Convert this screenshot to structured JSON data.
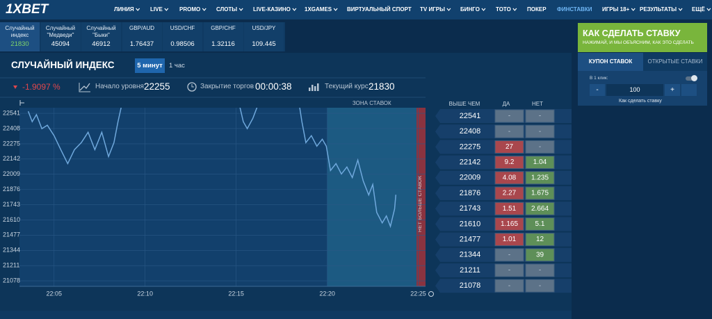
{
  "nav": {
    "logo": "1XBET",
    "items": [
      "ЛИНИЯ",
      "LIVE",
      "PROMO",
      "СЛОТЫ",
      "LIVE-КАЗИНО",
      "1XGAMES",
      "ВИРТУАЛЬНЫЙ СПОРТ",
      "TV ИГРЫ",
      "БИНГО",
      "ТОТО",
      "ПОКЕР",
      "ФИНСТАВКИ",
      "ИГРЫ 18+",
      "РЕЗУЛЬТАТЫ",
      "ЕЩЁ"
    ]
  },
  "tabs": [
    {
      "label": "Случайный индекс",
      "value": 21830
    },
    {
      "label": "Случайный \"Медведи\"",
      "value": 45094
    },
    {
      "label": "Случайный \"Быки\"",
      "value": 46912
    },
    {
      "label": "GBP/AUD",
      "value": 1.76437
    },
    {
      "label": "USD/CHF",
      "value": 0.98506
    },
    {
      "label": "GBP/CHF",
      "value": 1.32116
    },
    {
      "label": "USD/JPY",
      "value": 109.445
    }
  ],
  "panel": {
    "title": "СЛУЧАЙНЫЙ ИНДЕКС",
    "periods": [
      "5 минут",
      "1 час"
    ],
    "change": "-1.9097 %",
    "start_label": "Начало уровня",
    "start_value": 22255,
    "close_label": "Закрытие торгов",
    "close_value": "00:00:38",
    "rate_label": "Текущий курс",
    "rate_value": 21830
  },
  "chart_data": {
    "type": "line",
    "zone_label": "ЗОНА СТАВОК",
    "closed_label": "НЕТ БОЛЬШЕ СТАВОК",
    "x": [
      3.58,
      3.8,
      4.03,
      4.33,
      4.63,
      5.0,
      5.37,
      5.75,
      6.12,
      6.5,
      6.87,
      7.24,
      7.62,
      7.99,
      8.29,
      8.51,
      8.74,
      12.0,
      15.17,
      15.39,
      15.61,
      15.92,
      16.21,
      17.5,
      18.46,
      18.61,
      18.83,
      19.13,
      19.43,
      19.73,
      19.95,
      20.18,
      20.48,
      20.78,
      21.08,
      21.38,
      21.68,
      21.98,
      22.28,
      22.5,
      22.72,
      23.02,
      23.25,
      23.47,
      23.7,
      23.77
    ],
    "series": [
      {
        "color": "#6fa8dc",
        "values": [
          22559,
          22468,
          22529,
          22407,
          22437,
          22346,
          22224,
          22102,
          22224,
          22285,
          22376,
          22224,
          22376,
          22163,
          22285,
          22468,
          22632,
          null,
          22620,
          22468,
          22407,
          22498,
          22620,
          null,
          22620,
          22468,
          22285,
          22346,
          22254,
          22315,
          22254,
          22041,
          22102,
          22011,
          22072,
          21980,
          22133,
          21950,
          21828,
          21919,
          21676,
          21584,
          21645,
          21554,
          21706,
          21830
        ]
      }
    ],
    "xlim": [
      3.1,
      25.4
    ],
    "ylim": [
      21030,
      22590
    ],
    "xticks": [
      {
        "value": 5,
        "label": "22:05"
      },
      {
        "value": 10,
        "label": "22:10"
      },
      {
        "value": 15,
        "label": "22:15"
      },
      {
        "value": 20,
        "label": "22:20"
      },
      {
        "value": 25,
        "label": "22:25"
      }
    ],
    "yticks": [
      22541,
      22408,
      22275,
      22142,
      22009,
      21876,
      21743,
      21610,
      21477,
      21344,
      21211,
      21078
    ],
    "grid": true
  },
  "bets": {
    "headers": [
      "ВЫШЕ ЧЕМ",
      "ДА",
      "НЕТ"
    ],
    "rows": [
      [
        22541,
        "-",
        "-"
      ],
      [
        22408,
        "-",
        "-"
      ],
      [
        22275,
        27,
        "-"
      ],
      [
        22142,
        9.2,
        1.04
      ],
      [
        22009,
        4.08,
        1.235
      ],
      [
        21876,
        2.27,
        1.675
      ],
      [
        21743,
        1.51,
        2.664
      ],
      [
        21610,
        1.165,
        5.1
      ],
      [
        21477,
        1.01,
        12
      ],
      [
        21344,
        "-",
        39
      ],
      [
        21211,
        "-",
        "-"
      ],
      [
        21078,
        "-",
        "-"
      ]
    ]
  },
  "coupon": {
    "title": "КАК СДЕЛАТЬ СТАВКУ",
    "subtitle": "НАЖИМАЙ, И МЫ ОБЪЯСНИМ, КАК ЭТО СДЕЛАТЬ",
    "tabs": [
      "КУПОН СТАВОК",
      "ОТКРЫТЫЕ СТАВКИ"
    ],
    "one_click": "В 1 клик:",
    "minus": "-",
    "amount": 100,
    "plus": "+",
    "help": "Как сделать ставку"
  }
}
